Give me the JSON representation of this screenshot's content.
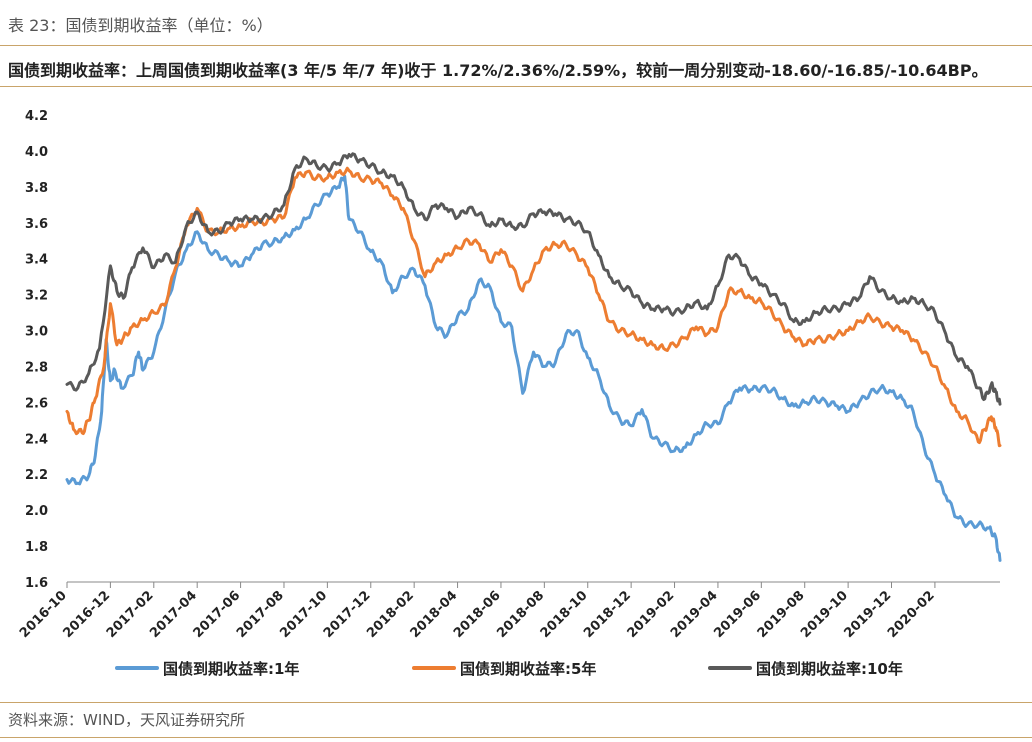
{
  "header": {
    "title": "表 23：国债到期收益率（单位：%）",
    "summary": "国债到期收益率：上周国债到期收益率(3 年/5 年/7 年)收于 1.72%/2.36%/2.59%，较前一周分别变动-18.60/-16.85/-10.64BP。"
  },
  "footer": {
    "source": "资料来源：WIND，天风证券研究所"
  },
  "chart_data": {
    "type": "line",
    "title": "",
    "xlabel": "",
    "ylabel": "",
    "ylim": [
      1.6,
      4.2
    ],
    "yticks": [
      "4.2",
      "4.0",
      "3.8",
      "3.6",
      "3.4",
      "3.2",
      "3.0",
      "2.8",
      "2.6",
      "2.4",
      "2.2",
      "2.0",
      "1.8",
      "1.6"
    ],
    "x_start": "2016-10",
    "x_end": "2020-03",
    "xticks": [
      "2016-10",
      "2016-12",
      "2017-02",
      "2017-04",
      "2017-06",
      "2017-08",
      "2017-10",
      "2017-12",
      "2018-02",
      "2018-04",
      "2018-06",
      "2018-08",
      "2018-10",
      "2018-12",
      "2019-02",
      "2019-04",
      "2019-06",
      "2019-08",
      "2019-10",
      "2019-12",
      "2020-02"
    ],
    "series": [
      {
        "name": "国债到期收益率:1年",
        "color": "#5b9bd5",
        "points": [
          [
            0.0,
            2.17
          ],
          [
            0.5,
            2.15
          ],
          [
            1.0,
            2.19
          ],
          [
            1.3,
            2.3
          ],
          [
            1.6,
            2.55
          ],
          [
            1.8,
            2.95
          ],
          [
            2.0,
            2.72
          ],
          [
            2.2,
            2.78
          ],
          [
            2.5,
            2.68
          ],
          [
            3.0,
            2.75
          ],
          [
            3.3,
            2.88
          ],
          [
            3.5,
            2.78
          ],
          [
            4.0,
            2.88
          ],
          [
            4.5,
            3.1
          ],
          [
            5.0,
            3.32
          ],
          [
            5.5,
            3.45
          ],
          [
            6.0,
            3.55
          ],
          [
            6.5,
            3.45
          ],
          [
            7.0,
            3.42
          ],
          [
            7.5,
            3.38
          ],
          [
            8.0,
            3.36
          ],
          [
            8.5,
            3.42
          ],
          [
            9.0,
            3.48
          ],
          [
            9.5,
            3.49
          ],
          [
            10.0,
            3.52
          ],
          [
            10.5,
            3.56
          ],
          [
            11.0,
            3.62
          ],
          [
            11.5,
            3.7
          ],
          [
            12.0,
            3.76
          ],
          [
            12.5,
            3.8
          ],
          [
            12.8,
            3.86
          ],
          [
            13.0,
            3.62
          ],
          [
            13.5,
            3.55
          ],
          [
            14.0,
            3.44
          ],
          [
            14.5,
            3.38
          ],
          [
            15.0,
            3.21
          ],
          [
            15.5,
            3.3
          ],
          [
            16.0,
            3.34
          ],
          [
            16.5,
            3.25
          ],
          [
            17.0,
            3.02
          ],
          [
            17.5,
            2.97
          ],
          [
            18.0,
            3.08
          ],
          [
            18.5,
            3.12
          ],
          [
            19.0,
            3.28
          ],
          [
            19.5,
            3.24
          ],
          [
            20.0,
            3.05
          ],
          [
            20.5,
            3.02
          ],
          [
            21.0,
            2.65
          ],
          [
            21.5,
            2.88
          ],
          [
            22.0,
            2.8
          ],
          [
            22.5,
            2.82
          ],
          [
            23.0,
            2.98
          ],
          [
            23.5,
            3.0
          ],
          [
            24.0,
            2.85
          ],
          [
            24.5,
            2.75
          ],
          [
            25.0,
            2.58
          ],
          [
            25.5,
            2.5
          ],
          [
            26.0,
            2.47
          ],
          [
            26.5,
            2.56
          ],
          [
            27.0,
            2.4
          ],
          [
            27.5,
            2.37
          ],
          [
            28.0,
            2.33
          ],
          [
            28.5,
            2.35
          ],
          [
            29.0,
            2.42
          ],
          [
            29.5,
            2.48
          ],
          [
            30.0,
            2.48
          ],
          [
            30.5,
            2.6
          ],
          [
            31.0,
            2.68
          ],
          [
            31.5,
            2.67
          ],
          [
            32.0,
            2.68
          ],
          [
            32.5,
            2.67
          ],
          [
            33.0,
            2.62
          ],
          [
            33.5,
            2.58
          ],
          [
            34.0,
            2.6
          ],
          [
            34.5,
            2.62
          ],
          [
            35.0,
            2.6
          ],
          [
            35.5,
            2.58
          ],
          [
            36.0,
            2.55
          ],
          [
            36.5,
            2.6
          ],
          [
            37.0,
            2.65
          ],
          [
            37.5,
            2.68
          ],
          [
            38.0,
            2.66
          ],
          [
            38.5,
            2.62
          ],
          [
            39.0,
            2.55
          ],
          [
            39.5,
            2.35
          ],
          [
            40.0,
            2.2
          ],
          [
            40.5,
            2.08
          ],
          [
            41.0,
            1.96
          ],
          [
            41.5,
            1.92
          ],
          [
            42.0,
            1.92
          ],
          [
            42.5,
            1.9
          ],
          [
            42.8,
            1.85
          ],
          [
            43.0,
            1.72
          ]
        ]
      },
      {
        "name": "国债到期收益率:5年",
        "color": "#ed7d31",
        "points": [
          [
            0.0,
            2.55
          ],
          [
            0.3,
            2.45
          ],
          [
            0.7,
            2.43
          ],
          [
            1.0,
            2.5
          ],
          [
            1.3,
            2.62
          ],
          [
            1.7,
            2.8
          ],
          [
            2.0,
            3.15
          ],
          [
            2.3,
            2.92
          ],
          [
            2.6,
            2.96
          ],
          [
            3.0,
            3.02
          ],
          [
            3.5,
            3.06
          ],
          [
            4.0,
            3.1
          ],
          [
            4.5,
            3.14
          ],
          [
            5.0,
            3.35
          ],
          [
            5.5,
            3.58
          ],
          [
            6.0,
            3.68
          ],
          [
            6.5,
            3.55
          ],
          [
            7.0,
            3.55
          ],
          [
            7.5,
            3.57
          ],
          [
            8.0,
            3.58
          ],
          [
            8.5,
            3.61
          ],
          [
            9.0,
            3.6
          ],
          [
            9.5,
            3.62
          ],
          [
            10.0,
            3.63
          ],
          [
            10.5,
            3.85
          ],
          [
            11.0,
            3.88
          ],
          [
            11.5,
            3.85
          ],
          [
            12.0,
            3.85
          ],
          [
            12.5,
            3.88
          ],
          [
            13.0,
            3.89
          ],
          [
            13.5,
            3.85
          ],
          [
            14.0,
            3.84
          ],
          [
            14.5,
            3.82
          ],
          [
            15.0,
            3.75
          ],
          [
            15.5,
            3.68
          ],
          [
            16.0,
            3.5
          ],
          [
            16.5,
            3.3
          ],
          [
            17.0,
            3.38
          ],
          [
            17.5,
            3.42
          ],
          [
            18.0,
            3.46
          ],
          [
            18.5,
            3.5
          ],
          [
            19.0,
            3.48
          ],
          [
            19.5,
            3.38
          ],
          [
            20.0,
            3.45
          ],
          [
            20.5,
            3.36
          ],
          [
            21.0,
            3.22
          ],
          [
            21.5,
            3.34
          ],
          [
            22.0,
            3.45
          ],
          [
            22.5,
            3.48
          ],
          [
            23.0,
            3.48
          ],
          [
            23.5,
            3.42
          ],
          [
            24.0,
            3.35
          ],
          [
            24.5,
            3.2
          ],
          [
            25.0,
            3.05
          ],
          [
            25.5,
            3.0
          ],
          [
            26.0,
            2.98
          ],
          [
            26.5,
            2.95
          ],
          [
            27.0,
            2.92
          ],
          [
            27.5,
            2.9
          ],
          [
            28.0,
            2.92
          ],
          [
            28.5,
            2.96
          ],
          [
            29.0,
            3.02
          ],
          [
            29.5,
            2.98
          ],
          [
            30.0,
            3.02
          ],
          [
            30.5,
            3.22
          ],
          [
            31.0,
            3.22
          ],
          [
            31.5,
            3.18
          ],
          [
            32.0,
            3.16
          ],
          [
            32.5,
            3.1
          ],
          [
            33.0,
            3.02
          ],
          [
            33.5,
            2.96
          ],
          [
            34.0,
            2.92
          ],
          [
            34.5,
            2.95
          ],
          [
            35.0,
            2.95
          ],
          [
            35.5,
            2.98
          ],
          [
            36.0,
            3.0
          ],
          [
            36.5,
            3.05
          ],
          [
            37.0,
            3.08
          ],
          [
            37.5,
            3.04
          ],
          [
            38.0,
            3.02
          ],
          [
            38.5,
            3.0
          ],
          [
            39.0,
            2.95
          ],
          [
            39.5,
            2.88
          ],
          [
            40.0,
            2.8
          ],
          [
            40.5,
            2.68
          ],
          [
            41.0,
            2.55
          ],
          [
            41.5,
            2.5
          ],
          [
            42.0,
            2.38
          ],
          [
            42.3,
            2.45
          ],
          [
            42.6,
            2.52
          ],
          [
            42.8,
            2.46
          ],
          [
            43.0,
            2.36
          ]
        ]
      },
      {
        "name": "国债到期收益率:10年",
        "color": "#595959",
        "points": [
          [
            0.0,
            2.7
          ],
          [
            0.5,
            2.68
          ],
          [
            1.0,
            2.76
          ],
          [
            1.5,
            2.9
          ],
          [
            2.0,
            3.36
          ],
          [
            2.3,
            3.22
          ],
          [
            2.6,
            3.18
          ],
          [
            3.0,
            3.35
          ],
          [
            3.5,
            3.46
          ],
          [
            4.0,
            3.35
          ],
          [
            4.5,
            3.42
          ],
          [
            5.0,
            3.38
          ],
          [
            5.5,
            3.58
          ],
          [
            6.0,
            3.66
          ],
          [
            6.5,
            3.55
          ],
          [
            7.0,
            3.55
          ],
          [
            7.5,
            3.6
          ],
          [
            8.0,
            3.62
          ],
          [
            8.5,
            3.62
          ],
          [
            9.0,
            3.62
          ],
          [
            9.5,
            3.65
          ],
          [
            10.0,
            3.7
          ],
          [
            10.5,
            3.9
          ],
          [
            11.0,
            3.96
          ],
          [
            11.5,
            3.92
          ],
          [
            12.0,
            3.9
          ],
          [
            12.5,
            3.93
          ],
          [
            13.0,
            3.98
          ],
          [
            13.5,
            3.95
          ],
          [
            14.0,
            3.92
          ],
          [
            14.5,
            3.88
          ],
          [
            15.0,
            3.86
          ],
          [
            15.5,
            3.8
          ],
          [
            16.0,
            3.68
          ],
          [
            16.5,
            3.62
          ],
          [
            17.0,
            3.7
          ],
          [
            17.5,
            3.68
          ],
          [
            18.0,
            3.63
          ],
          [
            18.5,
            3.68
          ],
          [
            19.0,
            3.65
          ],
          [
            19.5,
            3.58
          ],
          [
            20.0,
            3.62
          ],
          [
            20.5,
            3.58
          ],
          [
            21.0,
            3.58
          ],
          [
            21.5,
            3.65
          ],
          [
            22.0,
            3.66
          ],
          [
            22.5,
            3.65
          ],
          [
            23.0,
            3.62
          ],
          [
            23.5,
            3.6
          ],
          [
            24.0,
            3.55
          ],
          [
            24.5,
            3.42
          ],
          [
            25.0,
            3.3
          ],
          [
            25.5,
            3.25
          ],
          [
            26.0,
            3.22
          ],
          [
            26.5,
            3.15
          ],
          [
            27.0,
            3.12
          ],
          [
            27.5,
            3.12
          ],
          [
            28.0,
            3.1
          ],
          [
            28.5,
            3.12
          ],
          [
            29.0,
            3.16
          ],
          [
            29.5,
            3.12
          ],
          [
            30.0,
            3.25
          ],
          [
            30.5,
            3.42
          ],
          [
            31.0,
            3.4
          ],
          [
            31.5,
            3.3
          ],
          [
            32.0,
            3.26
          ],
          [
            32.5,
            3.2
          ],
          [
            33.0,
            3.15
          ],
          [
            33.5,
            3.05
          ],
          [
            34.0,
            3.05
          ],
          [
            34.5,
            3.1
          ],
          [
            35.0,
            3.12
          ],
          [
            35.5,
            3.12
          ],
          [
            36.0,
            3.15
          ],
          [
            36.5,
            3.18
          ],
          [
            37.0,
            3.3
          ],
          [
            37.5,
            3.22
          ],
          [
            38.0,
            3.18
          ],
          [
            38.5,
            3.16
          ],
          [
            39.0,
            3.18
          ],
          [
            39.5,
            3.15
          ],
          [
            40.0,
            3.1
          ],
          [
            40.5,
            2.98
          ],
          [
            41.0,
            2.85
          ],
          [
            41.5,
            2.8
          ],
          [
            42.0,
            2.68
          ],
          [
            42.3,
            2.62
          ],
          [
            42.6,
            2.7
          ],
          [
            42.8,
            2.66
          ],
          [
            43.0,
            2.59
          ]
        ]
      }
    ],
    "legend_position": "bottom"
  }
}
